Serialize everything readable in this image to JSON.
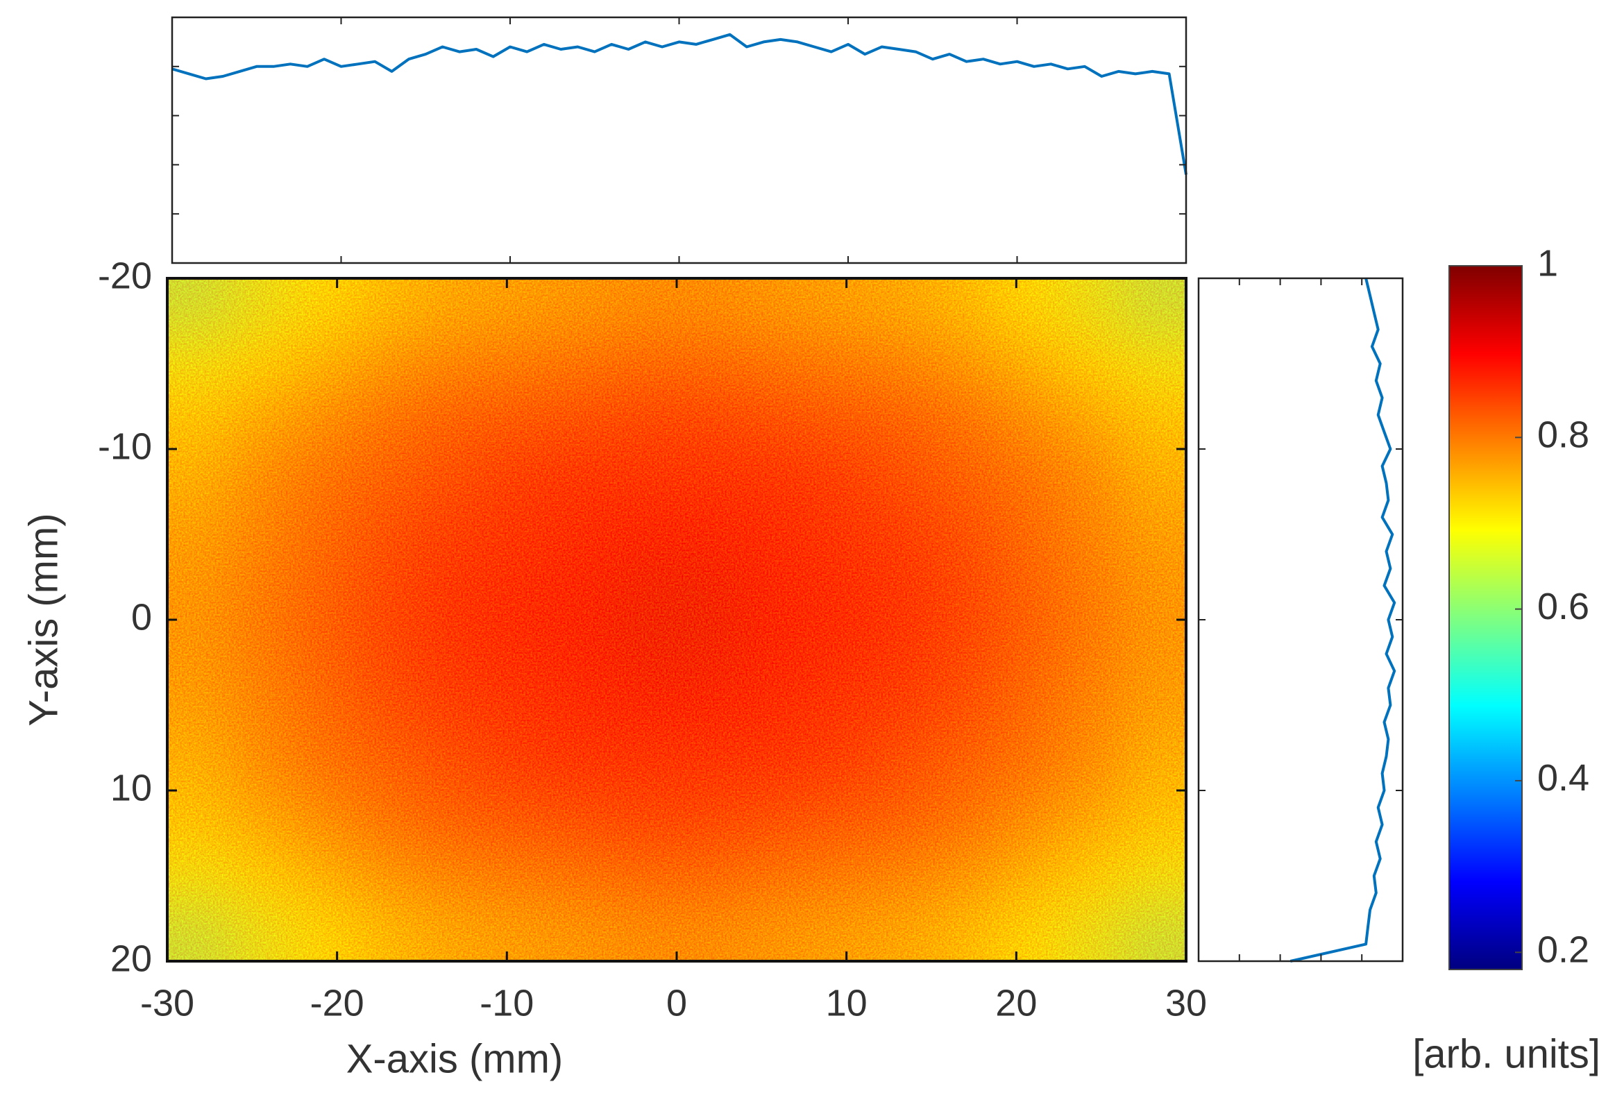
{
  "chart_data": [
    {
      "type": "heatmap",
      "xlabel": "X-axis (mm)",
      "ylabel": "Y-axis (mm)",
      "xlim": [
        -30,
        30
      ],
      "ylim": [
        -20,
        20
      ],
      "yreverse": true,
      "xticks": [
        -30,
        -20,
        -10,
        0,
        10,
        20,
        30
      ],
      "yticks": [
        -20,
        -10,
        0,
        10,
        20
      ],
      "colormap": "jet",
      "clim": [
        0.18,
        1
      ],
      "cticks": [
        0.2,
        0.4,
        0.6,
        0.8,
        1
      ],
      "clabel": "[arb. units]",
      "z": [
        [
          0.64,
          0.67,
          0.7,
          0.73,
          0.75,
          0.76,
          0.77,
          0.78,
          0.78,
          0.77,
          0.76,
          0.75,
          0.73,
          0.7,
          0.67,
          0.64
        ],
        [
          0.68,
          0.71,
          0.74,
          0.77,
          0.79,
          0.8,
          0.81,
          0.82,
          0.82,
          0.81,
          0.8,
          0.79,
          0.77,
          0.74,
          0.71,
          0.68
        ],
        [
          0.72,
          0.75,
          0.78,
          0.81,
          0.83,
          0.84,
          0.85,
          0.86,
          0.86,
          0.85,
          0.84,
          0.83,
          0.81,
          0.78,
          0.75,
          0.72
        ],
        [
          0.74,
          0.78,
          0.81,
          0.83,
          0.85,
          0.87,
          0.88,
          0.88,
          0.88,
          0.88,
          0.87,
          0.85,
          0.83,
          0.81,
          0.78,
          0.74
        ],
        [
          0.76,
          0.79,
          0.82,
          0.85,
          0.87,
          0.88,
          0.89,
          0.9,
          0.9,
          0.89,
          0.88,
          0.87,
          0.85,
          0.82,
          0.79,
          0.76
        ],
        [
          0.77,
          0.8,
          0.83,
          0.86,
          0.88,
          0.89,
          0.9,
          0.91,
          0.91,
          0.9,
          0.89,
          0.88,
          0.86,
          0.83,
          0.8,
          0.77
        ],
        [
          0.77,
          0.8,
          0.83,
          0.86,
          0.88,
          0.89,
          0.9,
          0.91,
          0.91,
          0.9,
          0.89,
          0.88,
          0.86,
          0.83,
          0.8,
          0.77
        ],
        [
          0.76,
          0.79,
          0.82,
          0.85,
          0.87,
          0.88,
          0.89,
          0.9,
          0.9,
          0.89,
          0.88,
          0.87,
          0.85,
          0.82,
          0.79,
          0.76
        ],
        [
          0.74,
          0.78,
          0.81,
          0.83,
          0.85,
          0.87,
          0.88,
          0.88,
          0.88,
          0.88,
          0.87,
          0.85,
          0.83,
          0.81,
          0.78,
          0.74
        ],
        [
          0.72,
          0.75,
          0.78,
          0.81,
          0.83,
          0.84,
          0.85,
          0.86,
          0.86,
          0.85,
          0.84,
          0.83,
          0.81,
          0.78,
          0.75,
          0.72
        ],
        [
          0.68,
          0.71,
          0.74,
          0.77,
          0.79,
          0.8,
          0.81,
          0.82,
          0.82,
          0.81,
          0.8,
          0.79,
          0.77,
          0.74,
          0.71,
          0.68
        ],
        [
          0.64,
          0.67,
          0.7,
          0.73,
          0.75,
          0.76,
          0.77,
          0.78,
          0.78,
          0.77,
          0.76,
          0.75,
          0.73,
          0.7,
          0.67,
          0.64
        ]
      ]
    },
    {
      "type": "line",
      "color": "#0072bd",
      "xlim": [
        -30,
        30
      ],
      "ylim": [
        0,
        1
      ],
      "xticks": [
        -20,
        -10,
        0,
        10,
        20
      ],
      "yticks": [
        0.2,
        0.4,
        0.6,
        0.8
      ],
      "x": [
        -30,
        -29,
        -28,
        -27,
        -26,
        -25,
        -24,
        -23,
        -22,
        -21,
        -20,
        -19,
        -18,
        -17,
        -16,
        -15,
        -14,
        -13,
        -12,
        -11,
        -10,
        -9,
        -8,
        -7,
        -6,
        -5,
        -4,
        -3,
        -2,
        -1,
        0,
        1,
        2,
        3,
        4,
        5,
        6,
        7,
        8,
        9,
        10,
        11,
        12,
        13,
        14,
        15,
        16,
        17,
        18,
        19,
        20,
        21,
        22,
        23,
        24,
        25,
        26,
        27,
        28,
        29,
        30
      ],
      "values": [
        0.79,
        0.77,
        0.75,
        0.76,
        0.78,
        0.8,
        0.8,
        0.81,
        0.8,
        0.83,
        0.8,
        0.81,
        0.82,
        0.78,
        0.83,
        0.85,
        0.88,
        0.86,
        0.87,
        0.84,
        0.88,
        0.86,
        0.89,
        0.87,
        0.88,
        0.86,
        0.89,
        0.87,
        0.9,
        0.88,
        0.9,
        0.89,
        0.91,
        0.93,
        0.88,
        0.9,
        0.91,
        0.9,
        0.88,
        0.86,
        0.89,
        0.85,
        0.88,
        0.87,
        0.86,
        0.83,
        0.85,
        0.82,
        0.83,
        0.81,
        0.82,
        0.8,
        0.81,
        0.79,
        0.8,
        0.76,
        0.78,
        0.77,
        0.78,
        0.77,
        0.36
      ]
    },
    {
      "type": "line",
      "orientation": "vertical",
      "color": "#0072bd",
      "xlim": [
        0,
        1
      ],
      "ylim": [
        -20,
        20
      ],
      "yreverse": true,
      "xticks": [
        0.2,
        0.4,
        0.6,
        0.8
      ],
      "yticks": [
        -10,
        0,
        10
      ],
      "y": [
        -20,
        -19,
        -18,
        -17,
        -16,
        -15,
        -14,
        -13,
        -12,
        -11,
        -10,
        -9,
        -8,
        -7,
        -6,
        -5,
        -4,
        -3,
        -2,
        -1,
        0,
        1,
        2,
        3,
        4,
        5,
        6,
        7,
        8,
        9,
        10,
        11,
        12,
        13,
        14,
        15,
        16,
        17,
        18,
        19,
        20
      ],
      "values": [
        0.82,
        0.84,
        0.86,
        0.88,
        0.85,
        0.89,
        0.87,
        0.9,
        0.88,
        0.91,
        0.94,
        0.9,
        0.92,
        0.93,
        0.9,
        0.95,
        0.92,
        0.94,
        0.91,
        0.96,
        0.93,
        0.95,
        0.92,
        0.96,
        0.93,
        0.94,
        0.91,
        0.93,
        0.92,
        0.9,
        0.91,
        0.88,
        0.9,
        0.87,
        0.89,
        0.86,
        0.87,
        0.84,
        0.83,
        0.82,
        0.45
      ]
    }
  ]
}
